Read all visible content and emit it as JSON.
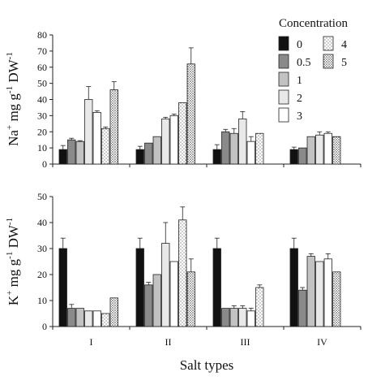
{
  "chart_data": [
    {
      "type": "bar",
      "ylabel_parts": [
        "Na",
        "+",
        " mg g",
        "-1",
        " DW",
        "-1"
      ],
      "ylim": [
        0,
        80
      ],
      "yticks": [
        0,
        10,
        20,
        30,
        40,
        50,
        60,
        70,
        80
      ],
      "groups": [
        "I",
        "II",
        "III",
        "IV"
      ],
      "series": [
        {
          "name": "0",
          "values": [
            9,
            9,
            9,
            9
          ],
          "errors": [
            2.5,
            2,
            3,
            1.5
          ]
        },
        {
          "name": "0.5",
          "values": [
            15,
            13,
            20,
            10
          ],
          "errors": [
            1,
            0,
            1.5,
            0
          ]
        },
        {
          "name": "1",
          "values": [
            14,
            17,
            19,
            17
          ],
          "errors": [
            0.5,
            0,
            3,
            0
          ]
        },
        {
          "name": "2",
          "values": [
            40,
            28,
            28,
            18
          ],
          "errors": [
            8,
            1,
            4.5,
            2
          ]
        },
        {
          "name": "3",
          "values": [
            32,
            30,
            14,
            19
          ],
          "errors": [
            1,
            1,
            3,
            1
          ]
        },
        {
          "name": "4",
          "values": [
            22,
            38,
            19,
            null
          ],
          "errors": [
            1,
            0,
            0,
            null
          ]
        },
        {
          "name": "5",
          "values": [
            46,
            62,
            null,
            17
          ],
          "errors": [
            5,
            10,
            null,
            0
          ]
        }
      ]
    },
    {
      "type": "bar",
      "ylabel_parts": [
        "K",
        "+",
        " mg g",
        "-1",
        " DW",
        "-1"
      ],
      "ylim": [
        0,
        50
      ],
      "yticks": [
        0,
        10,
        20,
        30,
        40,
        50
      ],
      "groups": [
        "I",
        "II",
        "III",
        "IV"
      ],
      "xlabel": "Salt types",
      "series": [
        {
          "name": "0",
          "values": [
            30,
            30,
            30,
            30
          ],
          "errors": [
            4,
            4,
            4,
            4
          ]
        },
        {
          "name": "0.5",
          "values": [
            7,
            16,
            7,
            14
          ],
          "errors": [
            1.5,
            1,
            0,
            1
          ]
        },
        {
          "name": "1",
          "values": [
            7,
            20,
            7,
            27
          ],
          "errors": [
            0,
            0,
            1,
            1
          ]
        },
        {
          "name": "2",
          "values": [
            6,
            32,
            7,
            25
          ],
          "errors": [
            0,
            8,
            1,
            0
          ]
        },
        {
          "name": "3",
          "values": [
            6,
            25,
            6,
            26
          ],
          "errors": [
            0,
            0,
            1,
            2
          ]
        },
        {
          "name": "4",
          "values": [
            5,
            41,
            15,
            null
          ],
          "errors": [
            0,
            5,
            1,
            null
          ]
        },
        {
          "name": "5",
          "values": [
            11,
            21,
            null,
            21
          ],
          "errors": [
            0,
            5,
            null,
            0
          ]
        }
      ]
    }
  ],
  "legend": {
    "title": "Concentration",
    "items": [
      {
        "label": "0",
        "fill": "#111111"
      },
      {
        "label": "0.5",
        "fill": "#8a8a8a"
      },
      {
        "label": "1",
        "fill": "#c2c2c2"
      },
      {
        "label": "2",
        "fill": "#e8e8e8"
      },
      {
        "label": "3",
        "fill": "#ffffff"
      },
      {
        "label": "4",
        "fill": "pattern-sparse-dots"
      },
      {
        "label": "5",
        "fill": "pattern-dense-dots"
      }
    ]
  }
}
